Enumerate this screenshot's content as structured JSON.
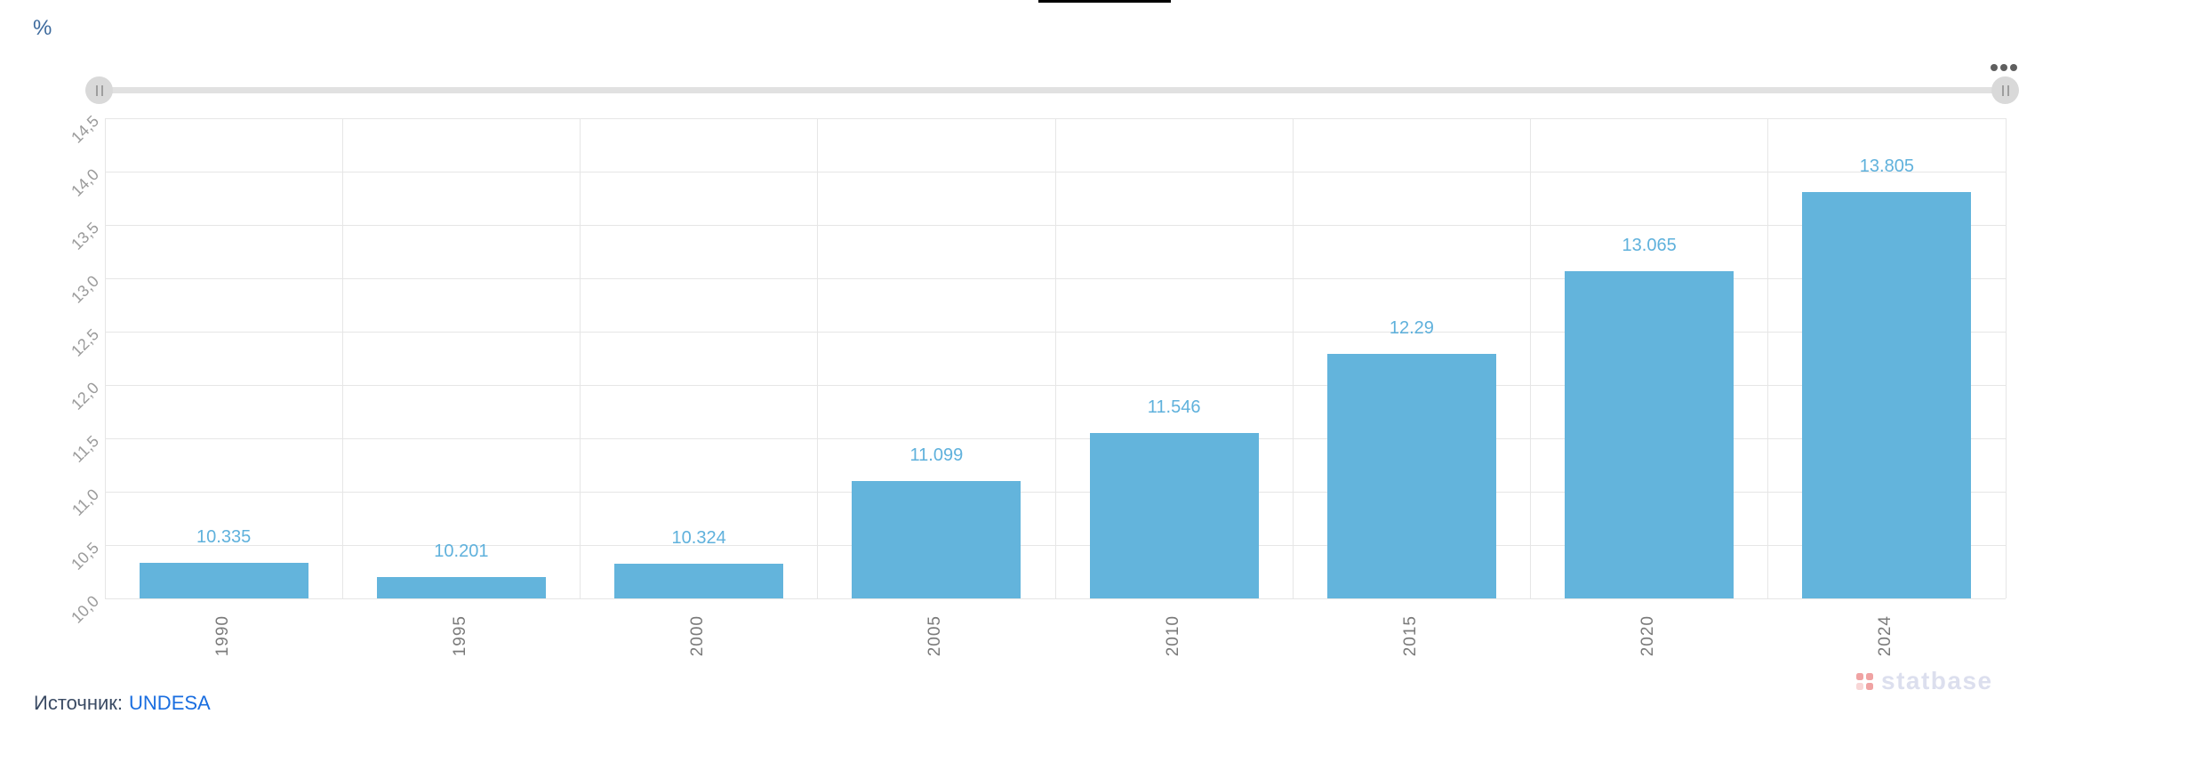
{
  "colors": {
    "bar": "#63b4dc",
    "valueLabel": "#5fb1dc",
    "grid": "#e6e6e6",
    "xLabel": "#7a7a7a",
    "yLabel": "#9b9b9b",
    "unit": "#3d6a9d",
    "sourceText": "#3a4a63",
    "link": "#1a6ee0",
    "sliderTrack": "#e1e1e1",
    "sliderHandle": "#d9d9d9",
    "sliderGrip": "#9e9e9e",
    "menuDots": "#5f5f5f",
    "watermarkText": "#dcdfee",
    "watermarkDot": "#f0a3a3",
    "watermarkDotLight": "#f8d6d6",
    "topLine": "#000000"
  },
  "chart_data": {
    "type": "bar",
    "title": "",
    "ylabel": "%",
    "categories": [
      "1990",
      "1995",
      "2000",
      "2005",
      "2010",
      "2015",
      "2020",
      "2024"
    ],
    "values": [
      10.335,
      10.201,
      10.324,
      11.099,
      11.546,
      12.29,
      13.065,
      13.805
    ],
    "value_labels": [
      "10.335",
      "10.201",
      "10.324",
      "11.099",
      "11.546",
      "12.29",
      "13.065",
      "13.805"
    ],
    "ylim": [
      10.0,
      14.5
    ],
    "ytick_step": 0.5,
    "ytick_labels": [
      "10,0",
      "10,5",
      "11,0",
      "11,5",
      "12,0",
      "12,5",
      "13,0",
      "13,5",
      "14,0",
      "14,5"
    ],
    "grid": true,
    "legend": false,
    "bar_color": "#63b4dc"
  },
  "slider": {
    "left_handle_icon": "grip-bars-icon",
    "right_handle_icon": "grip-bars-icon"
  },
  "context_menu": {
    "icon": "ellipsis-menu-icon"
  },
  "source": {
    "prefix": "Источник:",
    "link_text": "UNDESA"
  },
  "watermark": {
    "logo_icon": "statbase-dots-icon",
    "text": "statbase"
  }
}
